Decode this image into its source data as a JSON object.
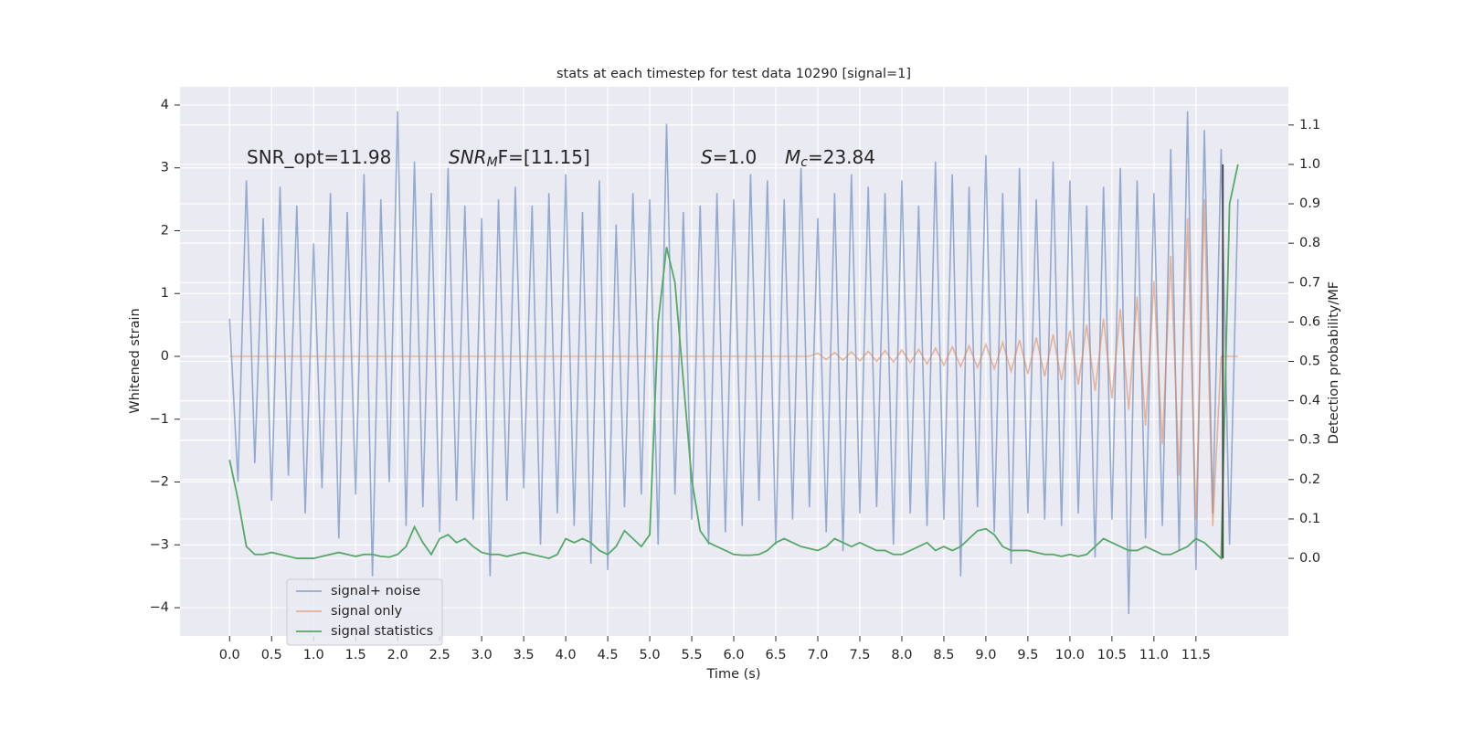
{
  "chart_data": {
    "type": "line",
    "title": "stats at each timestep for test data 10290 [signal=1]",
    "xlabel": "Time (s)",
    "ylabel": "Whitened strain",
    "y2label": "Detection probability/MF",
    "xlim": [
      -0.59,
      12.6
    ],
    "ylim": [
      -4.45,
      4.29
    ],
    "y2lim": [
      -0.197,
      1.197
    ],
    "xticks": [
      {
        "value": 0,
        "label": "0.0"
      },
      0.5,
      {
        "value": 1,
        "label": "1.0"
      },
      1.5,
      {
        "value": 2,
        "label": "2.0"
      },
      2.5,
      {
        "value": 3,
        "label": "3.0"
      },
      3.5,
      {
        "value": 4,
        "label": "4.0"
      },
      4.5,
      {
        "value": 5,
        "label": "5.0"
      },
      5.5,
      {
        "value": 6,
        "label": "6.0"
      },
      6.5,
      {
        "value": 7,
        "label": "7.0"
      },
      7.5,
      {
        "value": 8,
        "label": "8.0"
      },
      8.5,
      {
        "value": 9,
        "label": "9.0"
      },
      9.5,
      {
        "value": 10,
        "label": "10.0"
      },
      10.5,
      {
        "value": 11,
        "label": "11.0"
      },
      11.5
    ],
    "yticks": [
      {
        "value": -4,
        "label": "−4"
      },
      {
        "value": -3,
        "label": "−3"
      },
      {
        "value": -2,
        "label": "−2"
      },
      {
        "value": -1,
        "label": "−1"
      },
      0,
      1,
      2,
      3,
      4
    ],
    "y2ticks": [
      {
        "value": 0,
        "label": "0.0"
      },
      0.1,
      0.2,
      0.3,
      0.4,
      0.5,
      0.6,
      0.7,
      0.8,
      0.9,
      {
        "value": 1,
        "label": "1.0"
      },
      1.1
    ],
    "grid": true,
    "legend": "lower left",
    "x": [
      0,
      0.1,
      0.2,
      0.3,
      0.4,
      0.5,
      0.6,
      0.7,
      0.8,
      0.9,
      1,
      1.1,
      1.2,
      1.3,
      1.4,
      1.5,
      1.6,
      1.7,
      1.8,
      1.9,
      2,
      2.1,
      2.2,
      2.3,
      2.4,
      2.5,
      2.6,
      2.7,
      2.8,
      2.9,
      3,
      3.1,
      3.2,
      3.3,
      3.4,
      3.5,
      3.6,
      3.7,
      3.8,
      3.9,
      4,
      4.1,
      4.2,
      4.3,
      4.4,
      4.5,
      4.6,
      4.7,
      4.8,
      4.9,
      5,
      5.1,
      5.2,
      5.3,
      5.4,
      5.5,
      5.6,
      5.7,
      5.8,
      5.9,
      6,
      6.1,
      6.2,
      6.3,
      6.4,
      6.5,
      6.6,
      6.7,
      6.8,
      6.9,
      7,
      7.1,
      7.2,
      7.3,
      7.4,
      7.5,
      7.6,
      7.7,
      7.8,
      7.9,
      8,
      8.1,
      8.2,
      8.3,
      8.4,
      8.5,
      8.6,
      8.7,
      8.8,
      8.9,
      9,
      9.1,
      9.2,
      9.3,
      9.4,
      9.5,
      9.6,
      9.7,
      9.8,
      9.9,
      10,
      10.1,
      10.2,
      10.3,
      10.4,
      10.5,
      10.6,
      10.7,
      10.8,
      10.9,
      11,
      11.1,
      11.2,
      11.3,
      11.4,
      11.5,
      11.6,
      11.7,
      11.8,
      11.9,
      12
    ],
    "series": [
      {
        "name": "signal+ noise",
        "color": "#4c72b0",
        "values": [
          0.6,
          -2.0,
          2.8,
          -1.7,
          2.2,
          -2.3,
          2.7,
          -1.9,
          2.4,
          -2.5,
          1.8,
          -2.1,
          2.6,
          -2.9,
          2.3,
          -2.2,
          2.9,
          -3.5,
          2.5,
          -2.0,
          3.9,
          -2.7,
          3.1,
          -2.4,
          2.6,
          -2.8,
          3.0,
          -2.3,
          2.4,
          -2.6,
          2.2,
          -3.5,
          2.5,
          -2.3,
          2.7,
          -2.1,
          2.4,
          -3.0,
          2.6,
          -2.5,
          2.9,
          -2.7,
          2.3,
          -3.3,
          2.8,
          -3.4,
          2.1,
          -2.4,
          2.6,
          -2.2,
          2.5,
          -3.0,
          3.7,
          -2.2,
          2.3,
          -2.6,
          2.4,
          -3.0,
          2.6,
          -2.8,
          2.5,
          -2.7,
          2.9,
          -2.3,
          2.8,
          -3.0,
          2.5,
          -2.6,
          3.0,
          -2.4,
          2.2,
          -2.8,
          2.6,
          -3.1,
          2.9,
          -2.5,
          2.7,
          -2.4,
          2.6,
          -3.0,
          2.8,
          -2.5,
          2.4,
          -2.7,
          3.1,
          -2.6,
          2.9,
          -3.5,
          2.7,
          -2.4,
          3.2,
          -2.8,
          2.6,
          -3.3,
          3.0,
          -2.5,
          2.5,
          -2.6,
          3.1,
          -2.7,
          2.8,
          -2.5,
          2.4,
          -3.2,
          2.7,
          -2.6,
          3.0,
          -4.1,
          2.8,
          -2.9,
          2.6,
          -2.7,
          3.3,
          -3.1,
          3.9,
          -3.4,
          3.6,
          -2.5,
          3.3,
          -3.0,
          2.5
        ]
      },
      {
        "name": "signal only",
        "color": "#dd8452",
        "values": [
          0,
          0,
          0,
          0,
          0,
          0,
          0,
          0,
          0,
          0,
          0,
          0,
          0,
          0,
          0,
          0,
          0,
          0,
          0,
          0,
          0,
          0,
          0,
          0,
          0,
          0,
          0,
          0,
          0,
          0,
          0,
          0,
          0,
          0,
          0,
          0,
          0,
          0,
          0,
          0,
          0,
          0,
          0,
          0,
          0,
          0,
          0,
          0,
          0,
          0,
          0,
          0,
          0,
          0,
          0,
          0,
          0,
          0,
          0,
          0,
          0,
          0,
          0,
          0,
          0,
          0,
          0,
          0,
          0,
          0,
          0.05,
          -0.05,
          0.06,
          -0.06,
          0.07,
          -0.07,
          0.08,
          -0.08,
          0.09,
          -0.09,
          0.1,
          -0.1,
          0.11,
          -0.12,
          0.13,
          -0.14,
          0.15,
          -0.16,
          0.17,
          -0.18,
          0.19,
          -0.2,
          0.22,
          -0.24,
          0.26,
          -0.28,
          0.3,
          -0.32,
          0.35,
          -0.38,
          0.41,
          -0.45,
          0.5,
          -0.55,
          0.6,
          -0.67,
          0.75,
          -0.85,
          0.95,
          -1.1,
          1.2,
          -1.4,
          1.6,
          -1.9,
          2.2,
          -2.6,
          2.5,
          -2.7,
          0,
          0,
          0
        ]
      },
      {
        "name": "signal statistics",
        "color": "#55a868",
        "axis": "y2",
        "values": [
          0.25,
          0.15,
          0.03,
          0.01,
          0.01,
          0.015,
          0.01,
          0.005,
          0.0,
          0.0,
          0.0,
          0.005,
          0.01,
          0.015,
          0.01,
          0.005,
          0.01,
          0.01,
          0.005,
          0.003,
          0.01,
          0.03,
          0.08,
          0.04,
          0.01,
          0.05,
          0.06,
          0.04,
          0.05,
          0.03,
          0.015,
          0.01,
          0.01,
          0.005,
          0.01,
          0.015,
          0.01,
          0.005,
          0.0,
          0.01,
          0.05,
          0.04,
          0.05,
          0.04,
          0.02,
          0.01,
          0.03,
          0.07,
          0.05,
          0.03,
          0.06,
          0.6,
          0.79,
          0.7,
          0.45,
          0.2,
          0.07,
          0.04,
          0.03,
          0.02,
          0.01,
          0.008,
          0.008,
          0.01,
          0.02,
          0.04,
          0.05,
          0.04,
          0.03,
          0.025,
          0.02,
          0.03,
          0.05,
          0.04,
          0.03,
          0.04,
          0.03,
          0.02,
          0.02,
          0.01,
          0.01,
          0.02,
          0.03,
          0.04,
          0.02,
          0.03,
          0.02,
          0.03,
          0.05,
          0.07,
          0.075,
          0.06,
          0.03,
          0.02,
          0.02,
          0.02,
          0.015,
          0.01,
          0.01,
          0.005,
          0.01,
          0.005,
          0.01,
          0.03,
          0.05,
          0.04,
          0.03,
          0.02,
          0.02,
          0.03,
          0.02,
          0.01,
          0.01,
          0.02,
          0.03,
          0.05,
          0.04,
          0.02,
          0.0,
          0.9,
          1.0
        ]
      }
    ],
    "vline": {
      "x": 11.82,
      "ymin": 0,
      "ymax": 1,
      "color": "#444444"
    },
    "annotations": [
      {
        "text": "SNR_opt=11.98"
      },
      {
        "base": "SNR",
        "sub": "M",
        "rest": "F=[11.15]"
      },
      {
        "base": "S",
        "rest": "=1.0"
      },
      {
        "base": "M",
        "sub": "c",
        "rest": "=23.84"
      }
    ]
  }
}
